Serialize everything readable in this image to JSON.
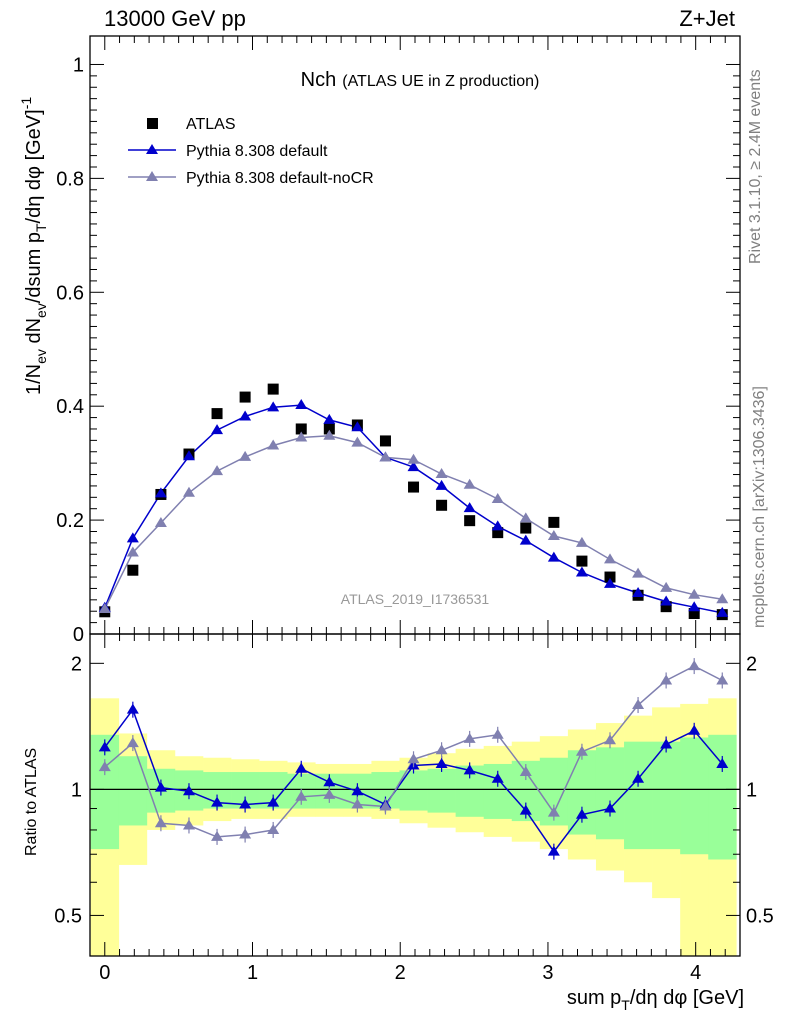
{
  "header": {
    "left": "13000 GeV pp",
    "right": "Z+Jet"
  },
  "plot": {
    "title_main": "Nch",
    "title_sub": "(ATLAS UE in Z production)",
    "watermark": "ATLAS_2019_I1736531"
  },
  "side": {
    "rivet": "Rivet 3.1.10, ≥ 2.4M events",
    "mcplots": "mcplots.cern.ch [arXiv:1306.3436]"
  },
  "axes": {
    "top_ylabel": "1/N_ev dN_ev/dsum p_T/dη dφ [GeV]^-1",
    "bottom_ylabel": "Ratio to ATLAS",
    "xlabel": "sum p_T/dη dφ [GeV]",
    "top_yticks": [
      "0",
      "0.2",
      "0.4",
      "0.6",
      "0.8",
      "1"
    ],
    "bottom_yticks_left": [
      "0.5",
      "1",
      "2"
    ],
    "bottom_yticks_right": [
      "0.5",
      "1",
      "2"
    ],
    "xticks": [
      "0",
      "1",
      "2",
      "3",
      "4"
    ]
  },
  "colors": {
    "atlas": "#000000",
    "default": "#0000cc",
    "nocr": "#8080b0",
    "band_inner": "#99ff99",
    "band_outer": "#ffff99"
  },
  "chart_data": {
    "type": "line",
    "xlim": [
      -0.1,
      4.3
    ],
    "top_ylim": [
      0,
      1.05
    ],
    "ratio_ylim": [
      0.4,
      2.35
    ],
    "ratio_log": true,
    "legend_position": "top-left",
    "x": [
      0.0,
      0.19,
      0.38,
      0.57,
      0.76,
      0.95,
      1.14,
      1.33,
      1.52,
      1.71,
      1.9,
      2.09,
      2.28,
      2.47,
      2.66,
      2.85,
      3.04,
      3.23,
      3.42,
      3.61,
      3.8,
      3.99,
      4.18
    ],
    "series": [
      {
        "name": "ATLAS",
        "key": "atlas",
        "marker": "square",
        "values": [
          0.039,
          0.112,
          0.245,
          0.316,
          0.387,
          0.416,
          0.43,
          0.36,
          0.36,
          0.367,
          0.339,
          0.258,
          0.226,
          0.199,
          0.178,
          0.186,
          0.196,
          0.128,
          0.1,
          0.068,
          0.048,
          0.036,
          0.034
        ]
      },
      {
        "name": "Pythia 8.308 default",
        "key": "default",
        "marker": "triangle",
        "values": [
          0.046,
          0.168,
          0.247,
          0.312,
          0.358,
          0.382,
          0.398,
          0.402,
          0.376,
          0.363,
          0.31,
          0.293,
          0.26,
          0.221,
          0.189,
          0.164,
          0.134,
          0.108,
          0.088,
          0.072,
          0.057,
          0.047,
          0.037
        ]
      },
      {
        "name": "Pythia 8.308 default-noCR",
        "key": "nocr",
        "marker": "triangle",
        "values": [
          0.044,
          0.143,
          0.195,
          0.248,
          0.286,
          0.311,
          0.331,
          0.345,
          0.348,
          0.336,
          0.31,
          0.306,
          0.281,
          0.262,
          0.237,
          0.203,
          0.172,
          0.16,
          0.131,
          0.106,
          0.081,
          0.069,
          0.061
        ]
      }
    ],
    "ratio_series": [
      {
        "name": "Pythia 8.308 default",
        "key": "default",
        "values": [
          1.26,
          1.55,
          1.01,
          0.99,
          0.93,
          0.92,
          0.93,
          1.12,
          1.04,
          0.99,
          0.92,
          1.14,
          1.15,
          1.11,
          1.06,
          0.89,
          0.71,
          0.87,
          0.9,
          1.06,
          1.28,
          1.38,
          1.15
        ]
      },
      {
        "name": "Pythia 8.308 default-noCR",
        "key": "nocr",
        "values": [
          1.13,
          1.29,
          0.83,
          0.82,
          0.77,
          0.78,
          0.8,
          0.96,
          0.97,
          0.92,
          0.91,
          1.18,
          1.24,
          1.32,
          1.35,
          1.1,
          0.88,
          1.23,
          1.31,
          1.59,
          1.82,
          1.97,
          1.82
        ]
      }
    ],
    "uncertainty_bands": {
      "inner": [
        [
          0.72,
          1.35
        ],
        [
          0.82,
          1.2
        ],
        [
          0.88,
          1.12
        ],
        [
          0.89,
          1.11
        ],
        [
          0.9,
          1.1
        ],
        [
          0.9,
          1.1
        ],
        [
          0.9,
          1.1
        ],
        [
          0.9,
          1.09
        ],
        [
          0.9,
          1.09
        ],
        [
          0.9,
          1.09
        ],
        [
          0.9,
          1.1
        ],
        [
          0.89,
          1.11
        ],
        [
          0.88,
          1.12
        ],
        [
          0.86,
          1.14
        ],
        [
          0.85,
          1.15
        ],
        [
          0.84,
          1.17
        ],
        [
          0.82,
          1.19
        ],
        [
          0.78,
          1.24
        ],
        [
          0.76,
          1.26
        ],
        [
          0.72,
          1.3
        ],
        [
          0.72,
          1.3
        ],
        [
          0.7,
          1.33
        ],
        [
          0.68,
          1.35
        ]
      ],
      "outer": [
        [
          0.36,
          1.65
        ],
        [
          0.66,
          1.36
        ],
        [
          0.8,
          1.24
        ],
        [
          0.82,
          1.2
        ],
        [
          0.84,
          1.19
        ],
        [
          0.85,
          1.18
        ],
        [
          0.85,
          1.17
        ],
        [
          0.86,
          1.16
        ],
        [
          0.86,
          1.15
        ],
        [
          0.86,
          1.15
        ],
        [
          0.85,
          1.17
        ],
        [
          0.83,
          1.19
        ],
        [
          0.81,
          1.22
        ],
        [
          0.79,
          1.25
        ],
        [
          0.77,
          1.27
        ],
        [
          0.75,
          1.3
        ],
        [
          0.72,
          1.34
        ],
        [
          0.68,
          1.39
        ],
        [
          0.64,
          1.44
        ],
        [
          0.6,
          1.5
        ],
        [
          0.55,
          1.57
        ],
        [
          0.38,
          1.6
        ],
        [
          0.36,
          1.65
        ]
      ]
    }
  }
}
